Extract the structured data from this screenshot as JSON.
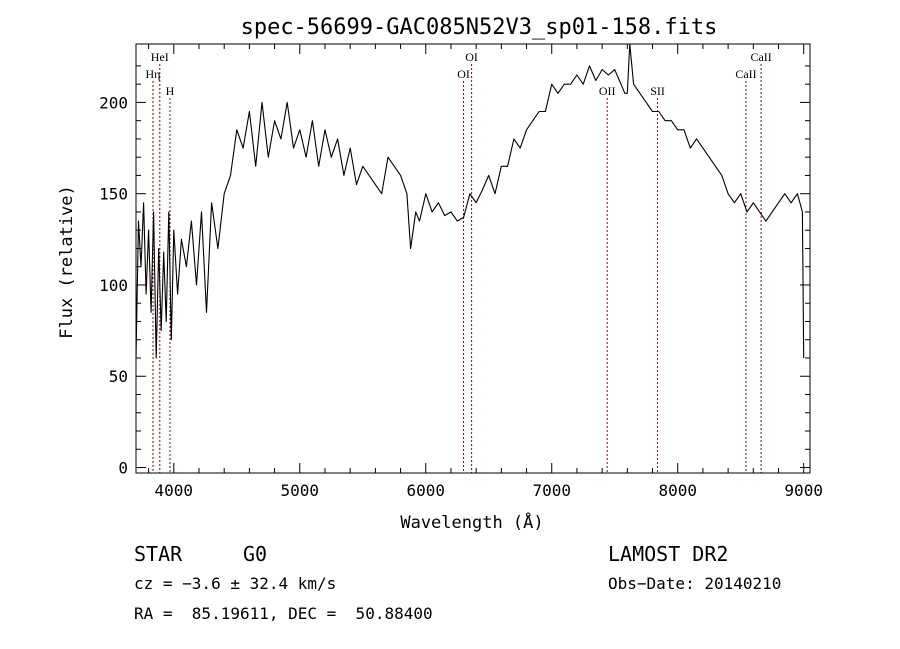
{
  "chart_data": {
    "type": "line",
    "title": "spec-56699-GAC085N52V3_sp01-158.fits",
    "xlabel": "Wavelength (Å)",
    "ylabel": "Flux (relative)",
    "xlim": [
      3700,
      9050
    ],
    "ylim": [
      -3,
      232
    ],
    "xticks": [
      4000,
      5000,
      6000,
      7000,
      8000,
      9000
    ],
    "yticks": [
      0,
      50,
      100,
      150,
      200
    ],
    "grid": false,
    "line_color": "#000000",
    "marker_color": "#8b0000",
    "series": [
      {
        "x": [
          3700,
          3720,
          3740,
          3760,
          3780,
          3800,
          3820,
          3840,
          3860,
          3880,
          3900,
          3920,
          3940,
          3960,
          3980,
          4000,
          4030,
          4060,
          4100,
          4140,
          4180,
          4220,
          4260,
          4300,
          4350,
          4400,
          4450,
          4500,
          4550,
          4600,
          4650,
          4700,
          4750,
          4800,
          4850,
          4900,
          4950,
          5000,
          5050,
          5100,
          5150,
          5200,
          5250,
          5300,
          5350,
          5400,
          5450,
          5500,
          5550,
          5600,
          5650,
          5700,
          5750,
          5800,
          5850,
          5880,
          5900,
          5920,
          5950,
          6000,
          6050,
          6100,
          6150,
          6200,
          6250,
          6300,
          6350,
          6400,
          6450,
          6500,
          6550,
          6600,
          6650,
          6700,
          6750,
          6800,
          6850,
          6900,
          6950,
          7000,
          7050,
          7100,
          7150,
          7200,
          7250,
          7300,
          7350,
          7400,
          7450,
          7500,
          7550,
          7580,
          7600,
          7620,
          7650,
          7700,
          7750,
          7800,
          7850,
          7900,
          7950,
          8000,
          8050,
          8100,
          8150,
          8200,
          8250,
          8300,
          8350,
          8400,
          8450,
          8500,
          8550,
          8600,
          8650,
          8700,
          8750,
          8800,
          8850,
          8900,
          8950,
          8990,
          9000
        ],
        "y": [
          60,
          135,
          110,
          145,
          95,
          130,
          85,
          140,
          60,
          120,
          75,
          118,
          80,
          140,
          70,
          130,
          95,
          125,
          110,
          135,
          100,
          140,
          85,
          145,
          120,
          150,
          160,
          185,
          175,
          195,
          165,
          200,
          170,
          190,
          180,
          200,
          175,
          185,
          170,
          190,
          165,
          185,
          170,
          180,
          160,
          175,
          155,
          165,
          160,
          155,
          150,
          170,
          165,
          160,
          150,
          120,
          130,
          140,
          135,
          150,
          140,
          145,
          138,
          140,
          135,
          137,
          150,
          145,
          152,
          160,
          150,
          165,
          165,
          180,
          175,
          185,
          190,
          195,
          195,
          210,
          205,
          210,
          210,
          215,
          210,
          220,
          212,
          218,
          215,
          218,
          210,
          205,
          205,
          232,
          210,
          205,
          200,
          195,
          195,
          190,
          190,
          185,
          185,
          175,
          180,
          175,
          170,
          165,
          160,
          150,
          145,
          150,
          140,
          145,
          140,
          135,
          140,
          145,
          150,
          145,
          150,
          140,
          60
        ]
      }
    ],
    "line_markers": [
      {
        "label": "HeI",
        "x": 3889,
        "row": 1
      },
      {
        "label": "Hη",
        "x": 3835,
        "row": 2
      },
      {
        "label": "H",
        "x": 3970,
        "row": 3
      },
      {
        "label": "OI",
        "x": 6364,
        "row": 1
      },
      {
        "label": "OI",
        "x": 6300,
        "row": 2
      },
      {
        "label": "OII",
        "x": 7440,
        "row": 3
      },
      {
        "label": "SII",
        "x": 7840,
        "row": 3
      },
      {
        "label": "CaII",
        "x": 8662,
        "row": 1
      },
      {
        "label": "CaII",
        "x": 8542,
        "row": 2
      }
    ]
  },
  "info": {
    "object_class": "STAR",
    "subclass": "G0",
    "survey": "LAMOST DR2",
    "cz": "cz = −3.6 ± 32.4 km/s",
    "obs_date": "Obs−Date: 20140210",
    "coords": "RA =  85.19611, DEC =  50.88400"
  }
}
